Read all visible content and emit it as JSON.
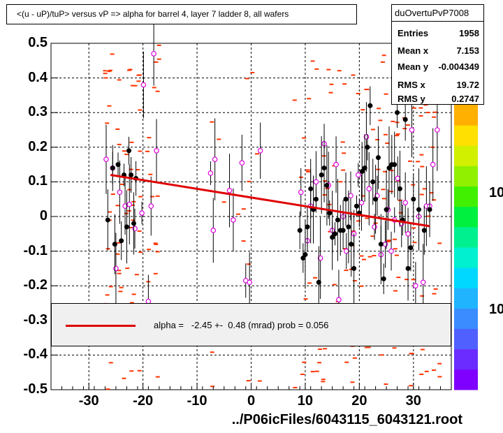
{
  "title": "<(u - uP)/tuP> versus   vP => alpha for barrel 4, layer 7 ladder 8, all wafers",
  "stats": {
    "name": "duOvertuPvP7008",
    "rows": [
      {
        "key": "Entries",
        "value": "1958"
      },
      {
        "key": "Mean x",
        "value": "7.153"
      },
      {
        "key": "Mean y",
        "value": "-0.004349"
      },
      {
        "key": "RMS x",
        "value": "19.72"
      },
      {
        "key": "RMS y",
        "value": "0.2747"
      }
    ]
  },
  "legend": {
    "text": "alpha =   -2.45 +-  0.48 (mrad) prob = 0.056",
    "line_color": "#e00000"
  },
  "xlabel": "../P06icFiles/6043115_6043121.root",
  "palette_labels": [
    "10",
    "10"
  ],
  "colors": {
    "fit": "#e00000",
    "marker_black": "#000000",
    "marker_pink": "#e000e0",
    "scatter": "#ff3300",
    "legend_bg": "#f0f0f0"
  },
  "chart_data": {
    "type": "scatter",
    "xlim": [
      -37,
      37
    ],
    "ylim": [
      -0.5,
      0.5
    ],
    "xticks": [
      -30,
      -20,
      -10,
      0,
      10,
      20,
      30
    ],
    "yticks": [
      -0.5,
      -0.4,
      -0.3,
      -0.2,
      -0.1,
      0,
      0.1,
      0.2,
      0.3,
      0.4,
      0.5
    ],
    "grid": true,
    "fit_line": {
      "x": [
        -26,
        33
      ],
      "y": [
        0.12,
        -0.028
      ]
    },
    "profile_black": [
      {
        "x": -26.5,
        "y": -0.01
      },
      {
        "x": -25.6,
        "y": 0.14
      },
      {
        "x": -25.2,
        "y": -0.08
      },
      {
        "x": -24.6,
        "y": 0.15
      },
      {
        "x": -24.0,
        "y": -0.07
      },
      {
        "x": -23.5,
        "y": 0.12
      },
      {
        "x": -23.0,
        "y": -0.03
      },
      {
        "x": -22.6,
        "y": 0.19
      },
      {
        "x": -22.2,
        "y": 0.12
      },
      {
        "x": -21.7,
        "y": -0.02
      },
      {
        "x": -21.3,
        "y": 0.11
      },
      {
        "x": 9.0,
        "y": -0.04
      },
      {
        "x": 9.6,
        "y": -0.12
      },
      {
        "x": 10.0,
        "y": -0.11
      },
      {
        "x": 10.4,
        "y": -0.03
      },
      {
        "x": 11.0,
        "y": 0.08
      },
      {
        "x": 11.5,
        "y": 0.02
      },
      {
        "x": 12.0,
        "y": 0.05
      },
      {
        "x": 12.5,
        "y": -0.19
      },
      {
        "x": 13.0,
        "y": 0.12
      },
      {
        "x": 13.5,
        "y": 0.14
      },
      {
        "x": 14.0,
        "y": 0.09
      },
      {
        "x": 14.5,
        "y": 0.01
      },
      {
        "x": 15.0,
        "y": -0.06
      },
      {
        "x": 15.5,
        "y": -0.05
      },
      {
        "x": 16.0,
        "y": -0.01
      },
      {
        "x": 16.5,
        "y": -0.04
      },
      {
        "x": 17.0,
        "y": -0.04
      },
      {
        "x": 17.5,
        "y": 0.05
      },
      {
        "x": 18.0,
        "y": -0.03
      },
      {
        "x": 18.5,
        "y": -0.08
      },
      {
        "x": 19.0,
        "y": -0.15
      },
      {
        "x": 19.5,
        "y": 0.03
      },
      {
        "x": 20.0,
        "y": 0.01
      },
      {
        "x": 20.5,
        "y": 0.13
      },
      {
        "x": 21.0,
        "y": 0.14
      },
      {
        "x": 21.5,
        "y": 0.2
      },
      {
        "x": 22.0,
        "y": 0.32
      },
      {
        "x": 22.5,
        "y": 0.1
      },
      {
        "x": 23.0,
        "y": 0.05
      },
      {
        "x": 23.5,
        "y": 0.17
      },
      {
        "x": 24.0,
        "y": -0.08
      },
      {
        "x": 24.5,
        "y": -0.18
      },
      {
        "x": 25.0,
        "y": 0.02
      },
      {
        "x": 25.5,
        "y": 0.14
      },
      {
        "x": 26.0,
        "y": 0.15
      },
      {
        "x": 26.5,
        "y": 0.15
      },
      {
        "x": 27.0,
        "y": 0.3
      },
      {
        "x": 27.5,
        "y": 0.08
      },
      {
        "x": 28.0,
        "y": -0.01
      },
      {
        "x": 28.5,
        "y": 0.28
      },
      {
        "x": 29.0,
        "y": -0.15
      },
      {
        "x": 29.5,
        "y": -0.09
      },
      {
        "x": 30.0,
        "y": 0.05
      },
      {
        "x": 31.0,
        "y": 0.02
      },
      {
        "x": 32.0,
        "y": -0.04
      },
      {
        "x": 33.0,
        "y": 0.02
      }
    ],
    "profile_pink": [
      {
        "x": -26.8,
        "y": 0.165
      },
      {
        "x": -25.6,
        "y": 0.14
      },
      {
        "x": -25.0,
        "y": -0.15
      },
      {
        "x": -24.3,
        "y": 0.07
      },
      {
        "x": -23.3,
        "y": 0.03
      },
      {
        "x": -22.5,
        "y": 0.035
      },
      {
        "x": -21.5,
        "y": -0.035
      },
      {
        "x": -20.2,
        "y": 0.01
      },
      {
        "x": -19.9,
        "y": 0.38
      },
      {
        "x": -19.0,
        "y": -0.245
      },
      {
        "x": -18.5,
        "y": 0.03
      },
      {
        "x": -18.0,
        "y": 0.47
      },
      {
        "x": -17.5,
        "y": 0.19
      },
      {
        "x": -7.5,
        "y": 0.125
      },
      {
        "x": -7.0,
        "y": -0.04
      },
      {
        "x": -6.7,
        "y": 0.165
      },
      {
        "x": -4.0,
        "y": 0.075
      },
      {
        "x": -3.3,
        "y": -0.01
      },
      {
        "x": -1.7,
        "y": 0.155
      },
      {
        "x": -1.0,
        "y": -0.185
      },
      {
        "x": -0.3,
        "y": -0.19
      },
      {
        "x": 1.7,
        "y": 0.19
      },
      {
        "x": 9.2,
        "y": 0.07
      },
      {
        "x": 10.4,
        "y": -0.07
      },
      {
        "x": 11.0,
        "y": 0.03
      },
      {
        "x": 12.0,
        "y": 0.1
      },
      {
        "x": 12.8,
        "y": -0.12
      },
      {
        "x": 13.5,
        "y": 0.21
      },
      {
        "x": 14.3,
        "y": 0.09
      },
      {
        "x": 15.0,
        "y": -0.04
      },
      {
        "x": 15.7,
        "y": 0.15
      },
      {
        "x": 16.2,
        "y": -0.24
      },
      {
        "x": 17.0,
        "y": 0.0
      },
      {
        "x": 17.6,
        "y": -0.1
      },
      {
        "x": 18.4,
        "y": 0.06
      },
      {
        "x": 19.0,
        "y": -0.05
      },
      {
        "x": 19.8,
        "y": 0.12
      },
      {
        "x": 20.4,
        "y": 0.04
      },
      {
        "x": 21.3,
        "y": 0.23
      },
      {
        "x": 21.8,
        "y": 0.08
      },
      {
        "x": 22.8,
        "y": -0.03
      },
      {
        "x": 23.3,
        "y": 0.06
      },
      {
        "x": 24.0,
        "y": -0.11
      },
      {
        "x": 24.8,
        "y": -0.08
      },
      {
        "x": 25.3,
        "y": 0.02
      },
      {
        "x": 25.9,
        "y": -0.1
      },
      {
        "x": 26.5,
        "y": -0.01
      },
      {
        "x": 27.1,
        "y": 0.11
      },
      {
        "x": 27.8,
        "y": -0.02
      },
      {
        "x": 28.5,
        "y": 0.04
      },
      {
        "x": 29.0,
        "y": -0.05
      },
      {
        "x": 29.7,
        "y": 0.25
      },
      {
        "x": 30.4,
        "y": -0.2
      },
      {
        "x": 31.0,
        "y": 0.0
      },
      {
        "x": 31.8,
        "y": -0.19
      },
      {
        "x": 32.4,
        "y": 0.03
      },
      {
        "x": 33.0,
        "y": 0.03
      },
      {
        "x": 33.6,
        "y": 0.15
      },
      {
        "x": 34.4,
        "y": 0.25
      }
    ]
  }
}
